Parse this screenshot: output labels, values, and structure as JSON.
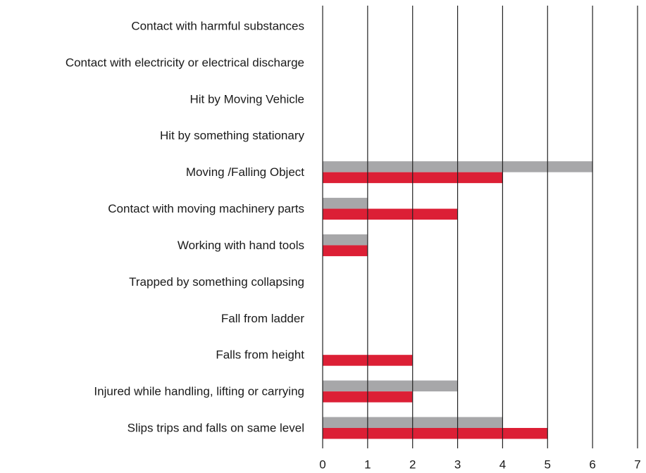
{
  "chart_data": {
    "type": "bar",
    "orientation": "horizontal",
    "categories": [
      "Contact with harmful substances",
      "Contact with electricity or electrical discharge",
      "Hit by Moving Vehicle",
      "Hit by something stationary",
      "Moving /Falling Object",
      "Contact with moving machinery parts",
      "Working with hand tools",
      "Trapped by something collapsing",
      "Fall from ladder",
      "Falls from height",
      "Injured while handling, lifting or carrying",
      "Slips trips and falls on same level"
    ],
    "series": [
      {
        "color": "#a7a7a9",
        "values": [
          0,
          0,
          0,
          0,
          6,
          1,
          1,
          0,
          0,
          0,
          3,
          4
        ]
      },
      {
        "color": "#dc1f35",
        "values": [
          0,
          0,
          0,
          0,
          4,
          3,
          1,
          0,
          0,
          2,
          2,
          5
        ]
      }
    ],
    "xlim": [
      0,
      7
    ],
    "xticks": [
      0,
      1,
      2,
      3,
      4,
      5,
      6,
      7
    ],
    "grid": true
  }
}
